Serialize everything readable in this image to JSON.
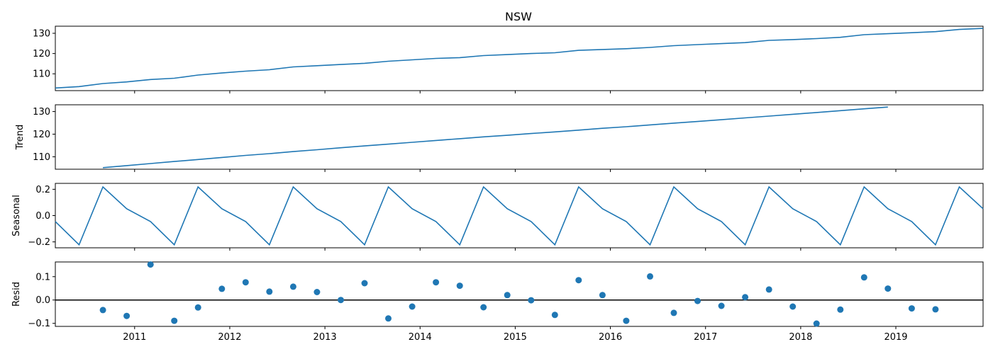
{
  "chart_data": {
    "type": "line",
    "title": "NSW",
    "color": "#1f77b4",
    "x_dates": [
      "2010-03",
      "2010-06",
      "2010-09",
      "2010-12",
      "2011-03",
      "2011-06",
      "2011-09",
      "2011-12",
      "2012-03",
      "2012-06",
      "2012-09",
      "2012-12",
      "2013-03",
      "2013-06",
      "2013-09",
      "2013-12",
      "2014-03",
      "2014-06",
      "2014-09",
      "2014-12",
      "2015-03",
      "2015-06",
      "2015-09",
      "2015-12",
      "2016-03",
      "2016-06",
      "2016-09",
      "2016-12",
      "2017-03",
      "2017-06",
      "2017-09",
      "2017-12",
      "2018-03",
      "2018-06",
      "2018-09",
      "2018-12",
      "2019-03",
      "2019-06",
      "2019-09",
      "2019-12"
    ],
    "xlim": [
      "2010-03",
      "2019-12"
    ],
    "x_tick_labels": [
      "2011",
      "2012",
      "2013",
      "2014",
      "2015",
      "2016",
      "2017",
      "2018",
      "2019"
    ],
    "panels": [
      {
        "name": "observed",
        "ylabel": "",
        "kind": "line",
        "ylim": [
          101.7,
          133.5
        ],
        "yticks": [
          110,
          120,
          130
        ],
        "ytick_labels": [
          "110",
          "120",
          "130"
        ],
        "values": [
          103.0,
          103.7,
          105.2,
          106.0,
          107.2,
          107.8,
          109.4,
          110.4,
          111.3,
          112.0,
          113.4,
          114.0,
          114.6,
          115.2,
          116.2,
          116.9,
          117.6,
          118.0,
          119.0,
          119.5,
          120.0,
          120.4,
          121.6,
          122.0,
          122.4,
          123.0,
          123.9,
          124.4,
          124.9,
          125.4,
          126.5,
          126.9,
          127.4,
          128.0,
          129.3,
          129.8,
          130.3,
          130.8,
          131.9,
          132.4
        ]
      },
      {
        "name": "trend",
        "ylabel": "Trend",
        "kind": "line",
        "ylim": [
          104.5,
          133.0
        ],
        "yticks": [
          110,
          120,
          130
        ],
        "ytick_labels": [
          "110",
          "120",
          "130"
        ],
        "values": [
          null,
          null,
          105.2,
          106.1,
          107.0,
          107.9,
          108.8,
          109.7,
          110.6,
          111.4,
          112.3,
          113.1,
          114.0,
          114.8,
          115.6,
          116.4,
          117.2,
          118.0,
          118.8,
          119.5,
          120.3,
          121.0,
          121.8,
          122.6,
          123.3,
          124.1,
          124.9,
          125.6,
          126.4,
          127.2,
          128.0,
          128.8,
          129.6,
          130.4,
          131.2,
          132.0,
          null,
          null,
          null,
          null
        ]
      },
      {
        "name": "seasonal",
        "ylabel": "Seasonal",
        "kind": "line",
        "ylim": [
          -0.245,
          0.245
        ],
        "yticks": [
          -0.2,
          0.0,
          0.2
        ],
        "ytick_labels": [
          "−0.2",
          "0.0",
          "0.2"
        ],
        "values": [
          -0.045,
          -0.222,
          0.218,
          0.052,
          -0.045,
          -0.222,
          0.218,
          0.052,
          -0.045,
          -0.222,
          0.218,
          0.052,
          -0.045,
          -0.222,
          0.218,
          0.052,
          -0.045,
          -0.222,
          0.218,
          0.052,
          -0.045,
          -0.222,
          0.218,
          0.052,
          -0.045,
          -0.222,
          0.218,
          0.052,
          -0.045,
          -0.222,
          0.218,
          0.052,
          -0.045,
          -0.222,
          0.218,
          0.052,
          -0.045,
          -0.222,
          0.218,
          0.052
        ]
      },
      {
        "name": "resid",
        "ylabel": "Resid",
        "kind": "scatter",
        "baseline": 0,
        "ylim": [
          -0.113,
          0.163
        ],
        "yticks": [
          -0.1,
          0.0,
          0.1
        ],
        "ytick_labels": [
          "−0.1",
          "0.0",
          "0.1"
        ],
        "values": [
          null,
          null,
          -0.043,
          -0.068,
          0.152,
          -0.089,
          -0.032,
          0.048,
          0.076,
          0.036,
          0.057,
          0.034,
          0.0,
          0.072,
          -0.079,
          -0.028,
          0.076,
          0.061,
          -0.031,
          0.021,
          -0.001,
          -0.064,
          0.085,
          0.021,
          -0.089,
          0.101,
          -0.055,
          -0.004,
          -0.025,
          0.012,
          0.045,
          -0.028,
          -0.101,
          -0.041,
          0.097,
          0.049,
          -0.036,
          -0.04,
          null,
          null
        ]
      }
    ]
  }
}
